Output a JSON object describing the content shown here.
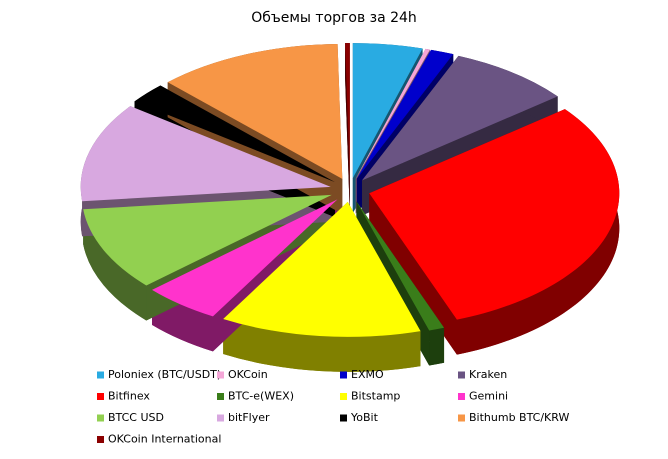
{
  "chart_data": {
    "type": "pie",
    "title": "Объемы торгов за 24h",
    "categories": [
      "Poloniex (BTC/USDT)",
      "OKCoin",
      "EXMO",
      "Kraken",
      "Bitfinex",
      "BTC-e(WEX)",
      "Bitstamp",
      "Gemini",
      "BTCC  USD",
      "bitFlyer",
      "YoBit",
      "Bithumb BTC/KRW",
      "OKCoin  International"
    ],
    "values": [
      4.5,
      0.3,
      1.5,
      8,
      30,
      1,
      13,
      5,
      10,
      11.9,
      2.5,
      12,
      0.3
    ],
    "colors": [
      "#29abe2",
      "#f4a6d7",
      "#0000cc",
      "#6a5483",
      "#ff0000",
      "#3a7d1a",
      "#ffff00",
      "#ff33cc",
      "#92d050",
      "#d8a8e0",
      "#000000",
      "#f79646",
      "#8b0000"
    ],
    "legend": "bottom"
  }
}
